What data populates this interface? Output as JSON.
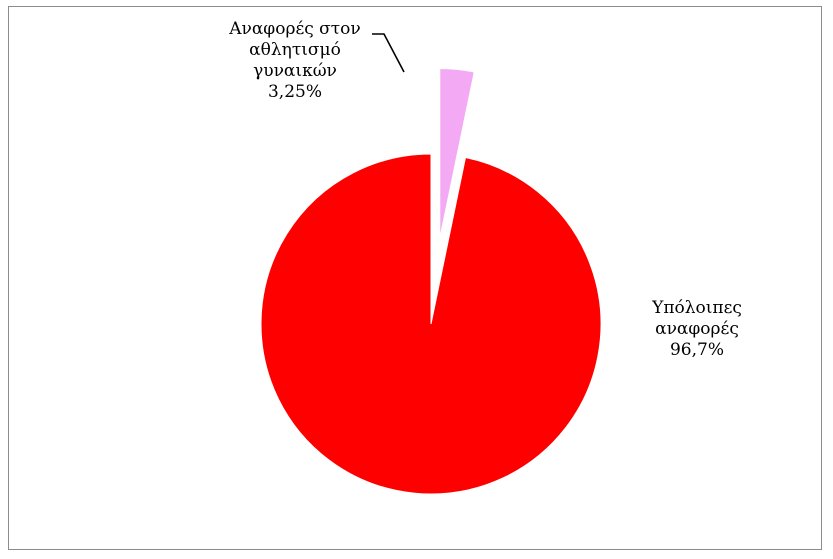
{
  "chart_data": {
    "type": "pie",
    "title": "",
    "slices": [
      {
        "label_lines": [
          "Αναφορές στον",
          "αθλητισμό",
          "γυναικών"
        ],
        "value": 3.25,
        "value_label": "3,25%",
        "color": "#f4a9f4",
        "exploded": true
      },
      {
        "label_lines": [
          "Υπόλοιπες",
          "αναφορές"
        ],
        "value": 96.7,
        "value_label": "96,7%",
        "color": "#ff0000",
        "exploded": false
      }
    ],
    "start_angle": "12 o'clock, clockwise",
    "legend": "none",
    "leader_line": true
  }
}
